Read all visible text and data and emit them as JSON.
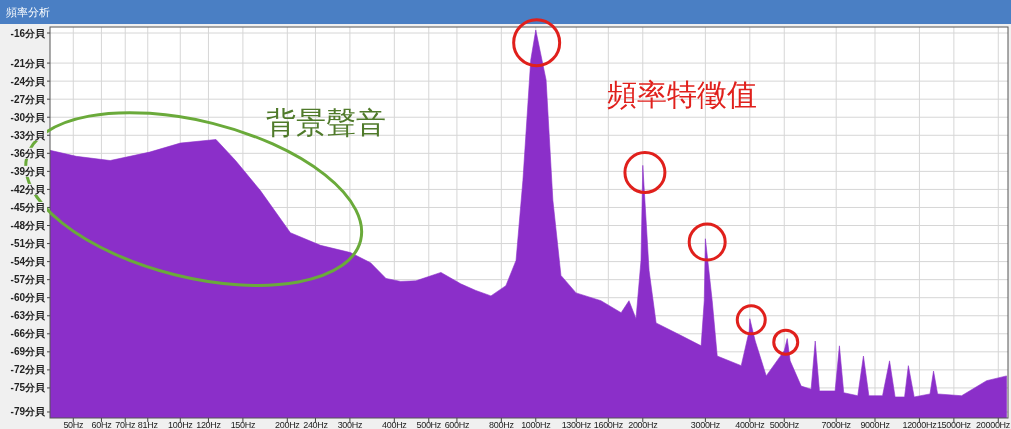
{
  "chart_data": {
    "type": "area",
    "title": "頻率分析",
    "annotations": [
      "背景聲音",
      "頻率特徵值"
    ],
    "log": "x",
    "grid": true,
    "color": "#8b2fc9",
    "xlim": [
      43,
      21300
    ],
    "ylim": [
      -80,
      -15
    ],
    "xticks": [
      {
        "value": 50,
        "label": "50Hz"
      },
      {
        "value": 60,
        "label": "60Hz"
      },
      {
        "value": 70,
        "label": "70Hz"
      },
      {
        "value": 81,
        "label": "81Hz"
      },
      {
        "value": 100,
        "label": "100Hz"
      },
      {
        "value": 120,
        "label": "120Hz"
      },
      {
        "value": 150,
        "label": "150Hz"
      },
      {
        "value": 200,
        "label": "200Hz"
      },
      {
        "value": 240,
        "label": "240Hz"
      },
      {
        "value": 300,
        "label": "300Hz"
      },
      {
        "value": 400,
        "label": "400Hz"
      },
      {
        "value": 500,
        "label": "500Hz"
      },
      {
        "value": 600,
        "label": "600Hz"
      },
      {
        "value": 800,
        "label": "800Hz"
      },
      {
        "value": 1000,
        "label": "1000Hz"
      },
      {
        "value": 1300,
        "label": "1300Hz"
      },
      {
        "value": 1600,
        "label": "1600Hz"
      },
      {
        "value": 2000,
        "label": "2000Hz"
      },
      {
        "value": 3000,
        "label": "3000Hz"
      },
      {
        "value": 4000,
        "label": "4000Hz"
      },
      {
        "value": 5000,
        "label": "5000Hz"
      },
      {
        "value": 7000,
        "label": "7000Hz"
      },
      {
        "value": 9000,
        "label": "9000Hz"
      },
      {
        "value": 12000,
        "label": "12000Hz"
      },
      {
        "value": 15000,
        "label": "15000Hz"
      },
      {
        "value": 20000,
        "label": "20000Hz"
      }
    ],
    "yticks": [
      {
        "value": -16,
        "label": "-16分貝"
      },
      {
        "value": -21,
        "label": "-21分貝"
      },
      {
        "value": -24,
        "label": "-24分貝"
      },
      {
        "value": -27,
        "label": "-27分貝"
      },
      {
        "value": -30,
        "label": "-30分貝"
      },
      {
        "value": -33,
        "label": "-33分貝"
      },
      {
        "value": -36,
        "label": "-36分貝"
      },
      {
        "value": -39,
        "label": "-39分貝"
      },
      {
        "value": -42,
        "label": "-42分貝"
      },
      {
        "value": -45,
        "label": "-45分貝"
      },
      {
        "value": -48,
        "label": "-48分貝"
      },
      {
        "value": -51,
        "label": "-51分貝"
      },
      {
        "value": -54,
        "label": "-54分貝"
      },
      {
        "value": -57,
        "label": "-57分貝"
      },
      {
        "value": -60,
        "label": "-60分貝"
      },
      {
        "value": -63,
        "label": "-63分貝"
      },
      {
        "value": -66,
        "label": "-66分貝"
      },
      {
        "value": -69,
        "label": "-69分貝"
      },
      {
        "value": -72,
        "label": "-72分貝"
      },
      {
        "value": -75,
        "label": "-75分貝"
      },
      {
        "value": -79,
        "label": "-79分貝"
      }
    ],
    "x": [
      43,
      51,
      63.5,
      82,
      100,
      126,
      143,
      168,
      204,
      248,
      301,
      343,
      379,
      417,
      460,
      541,
      615,
      678,
      748,
      824,
      880,
      920,
      968,
      1000,
      1069,
      1117,
      1177,
      1298,
      1525,
      1738,
      1829,
      1914,
      1977,
      2000,
      2083,
      2180,
      2564,
      2918,
      2978,
      3000,
      3135,
      3239,
      3784,
      3985,
      4000,
      4143,
      4449,
      5000,
      5097,
      5195,
      5580,
      5950,
      6110,
      6280,
      6950,
      7147,
      7350,
      8050,
      8350,
      8650,
      9450,
      9890,
      10250,
      10900,
      11170,
      11600,
      12850,
      13150,
      13500,
      15770,
      18540,
      21100
    ],
    "values": [
      -35.5,
      -36.5,
      -37.2,
      -35.8,
      -34.3,
      -33.7,
      -37.2,
      -42.2,
      -49.2,
      -51.3,
      -52.5,
      -54.2,
      -56.8,
      -57.3,
      -57.2,
      -55.8,
      -57.7,
      -58.8,
      -59.7,
      -58,
      -53.8,
      -40.5,
      -20.5,
      -15.5,
      -23.8,
      -43.8,
      -56.3,
      -59.2,
      -60.5,
      -62.5,
      -60.5,
      -63.5,
      -53.8,
      -38,
      -55.5,
      -64.2,
      -66.3,
      -68,
      -60.5,
      -50.2,
      -60.5,
      -69.7,
      -71.3,
      -65.5,
      -63.5,
      -67.2,
      -73,
      -68.8,
      -66.8,
      -70.5,
      -74.7,
      -75.2,
      -67.2,
      -75.5,
      -75.5,
      -68,
      -75.8,
      -76.3,
      -69.7,
      -76.3,
      -76.3,
      -70.5,
      -76.5,
      -76.5,
      -71.3,
      -76.5,
      -76,
      -72.2,
      -76,
      -76.3,
      -73.8,
      -73
    ]
  }
}
